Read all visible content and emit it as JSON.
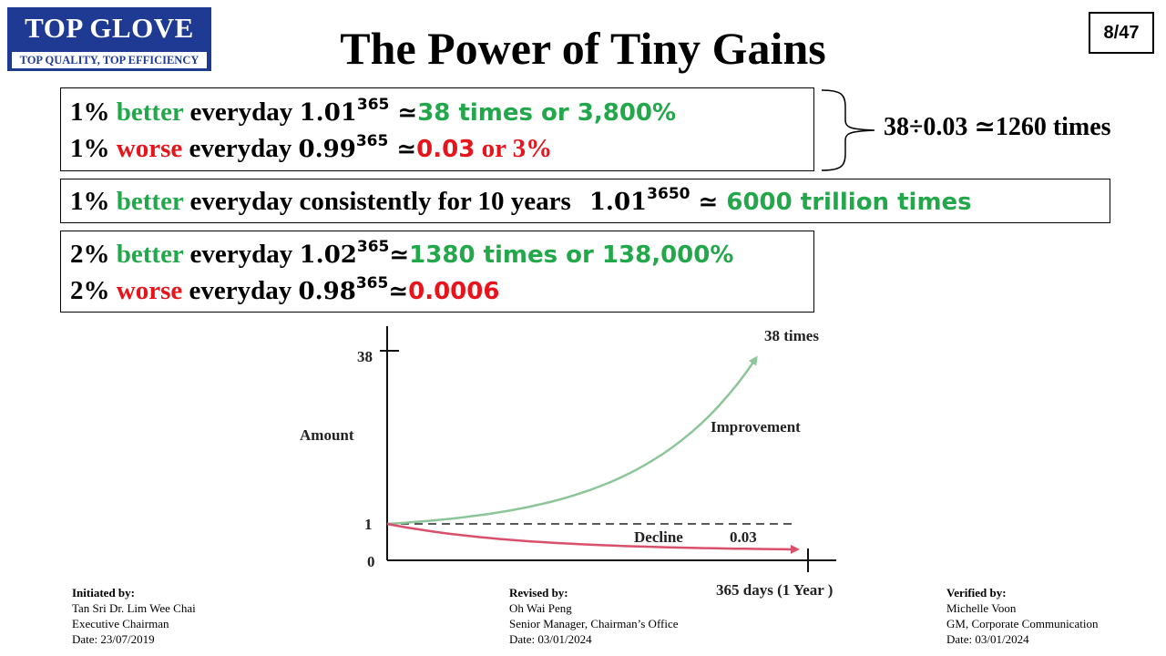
{
  "logo": {
    "name": "TOP GLOVE",
    "tagline": "TOP QUALITY, TOP EFFICIENCY"
  },
  "title": "The Power of Tiny Gains",
  "page_number": "8/47",
  "box1": {
    "line1": {
      "prefix": "1% ",
      "keyword": "better",
      "suffix": " everyday ",
      "base": "1.01",
      "exp": "365",
      "approx": " ≃",
      "result": "38 times or 3,800%"
    },
    "line2": {
      "prefix": "1% ",
      "keyword": "worse",
      "suffix": " everyday ",
      "base": "0.99",
      "exp": "365",
      "approx": " ≃",
      "result_a": "0.03",
      "result_b": " or 3%"
    }
  },
  "brace_note": "38÷0.03 ≃1260 times",
  "box2": {
    "prefix": "1% ",
    "keyword": "better",
    "suffix": " everyday consistently for 10 years",
    "base": "1.01",
    "exp": "3650",
    "approx": " ≃ ",
    "result": "6000 trillion times"
  },
  "box3": {
    "line1": {
      "prefix": "2% ",
      "keyword": "better",
      "suffix": " everyday ",
      "base": "1.02",
      "exp": "365",
      "approx": "≃",
      "result": "1380 times or 138,000%"
    },
    "line2": {
      "prefix": "2% ",
      "keyword": "worse",
      "suffix": " everyday ",
      "base": "0.98",
      "exp": "365",
      "approx": "≃",
      "result": "0.0006"
    }
  },
  "chart_data": {
    "type": "line",
    "ylabel": "Amount",
    "xlabel": "365 days (1 Year )",
    "y_ticks": [
      "38",
      "1",
      "0"
    ],
    "baseline": 1,
    "series": [
      {
        "name": "Improvement",
        "end_label": "38 times",
        "x": [
          0,
          365
        ],
        "y": [
          1,
          38
        ],
        "color": "#8cc598"
      },
      {
        "name": "Decline",
        "end_label": "0.03",
        "x": [
          0,
          365
        ],
        "y": [
          1,
          0.03
        ],
        "color": "#d9506b"
      }
    ]
  },
  "footer": {
    "initiated": {
      "heading": "Initiated by:",
      "name": "Tan Sri Dr. Lim Wee Chai",
      "role": "Executive Chairman",
      "date": "Date: 23/07/2019"
    },
    "revised": {
      "heading": "Revised by:",
      "name": "Oh Wai Peng",
      "role": "Senior Manager, Chairman’s Office",
      "date": "Date: 03/01/2024"
    },
    "verified": {
      "heading": "Verified by:",
      "name": "Michelle Voon",
      "role": "GM, Corporate Communication",
      "date": "Date: 03/01/2024"
    }
  }
}
